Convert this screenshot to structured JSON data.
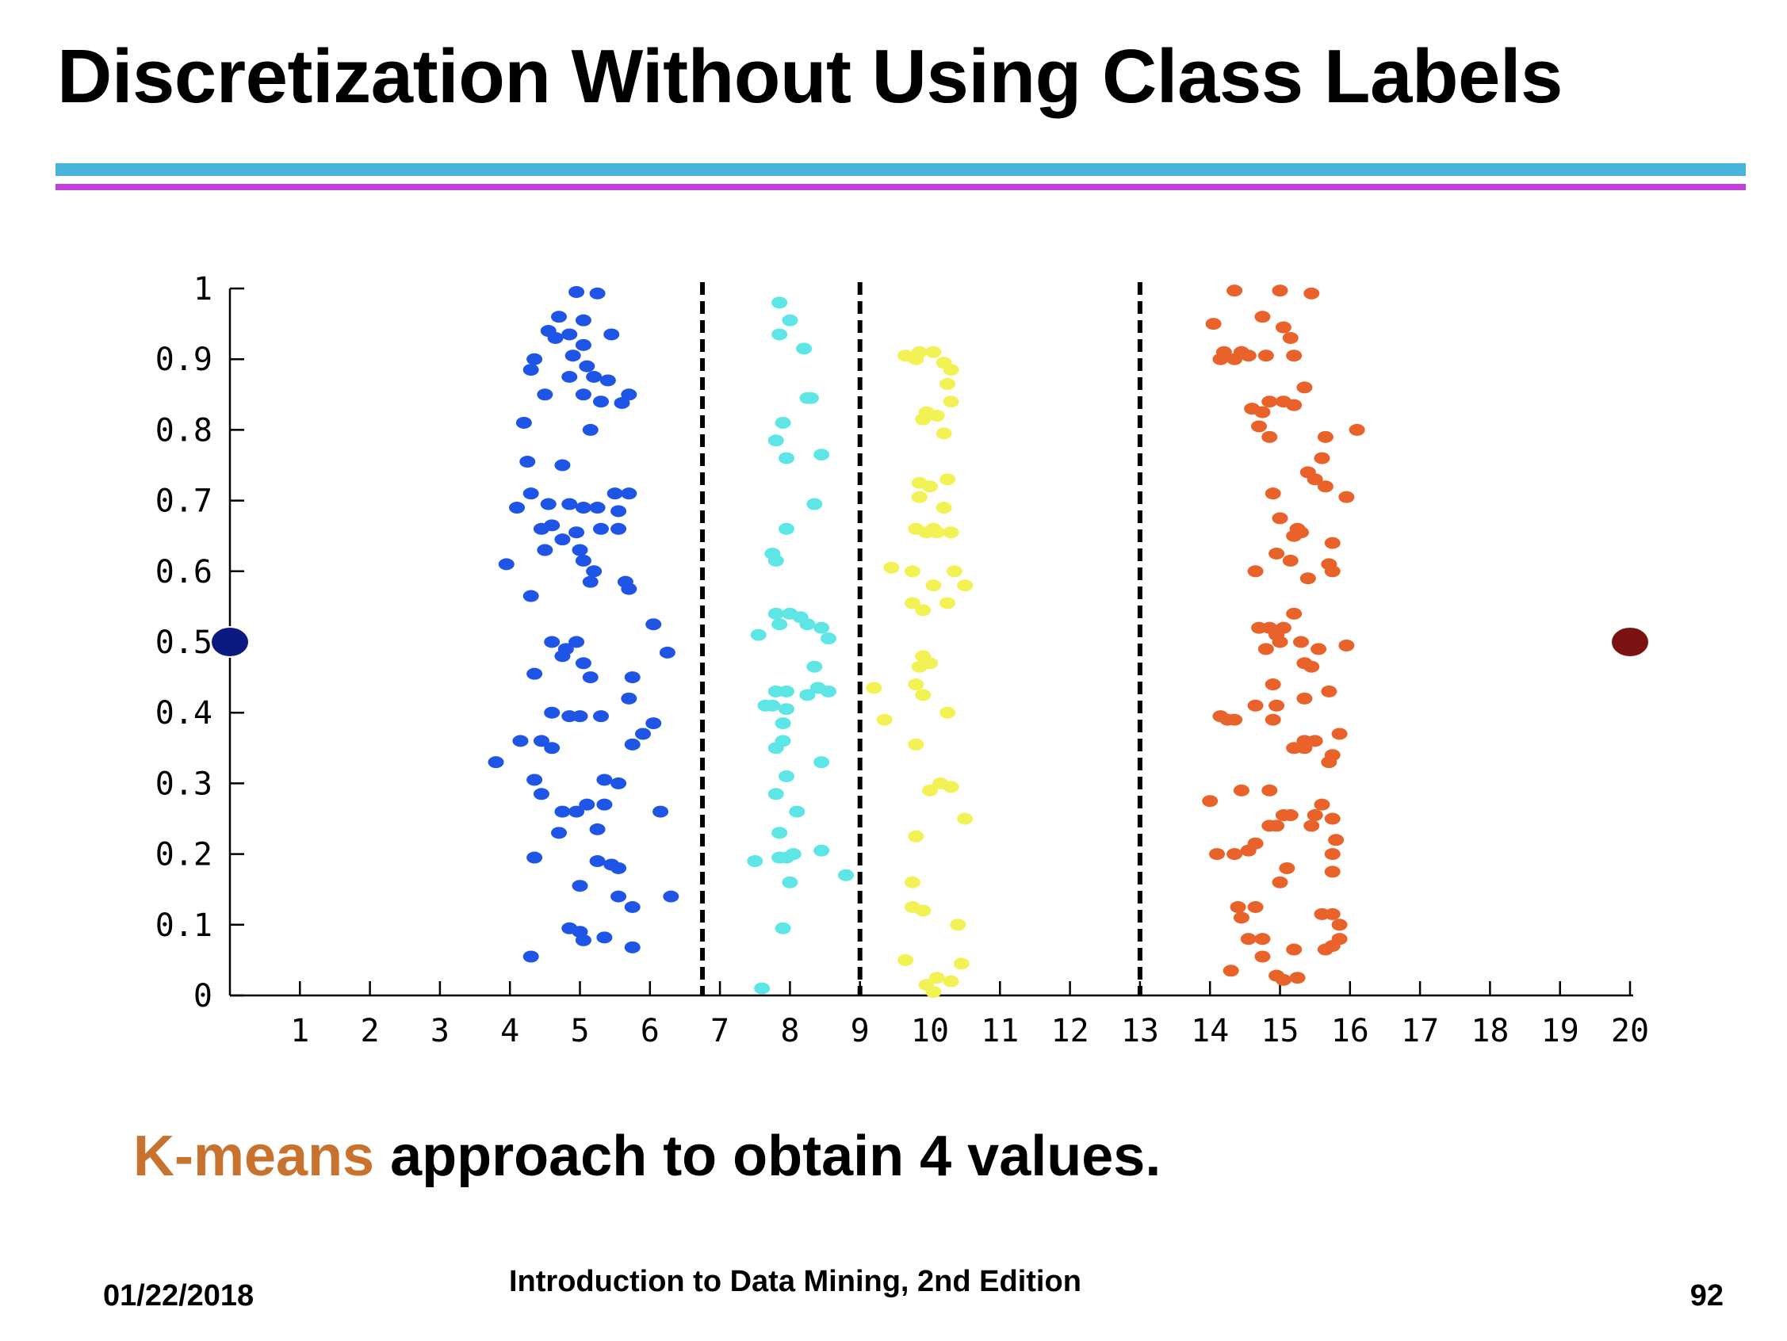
{
  "slide": {
    "title": "Discretization Without Using Class Labels",
    "caption_highlight": "K-means",
    "caption_rest": " approach to obtain 4 values.",
    "footer_date": "01/22/2018",
    "footer_course": "Introduction to Data Mining, 2nd Edition",
    "page_number": "92"
  },
  "colors": {
    "title": "#000000",
    "rule_top": "#48b4dc",
    "rule_bottom": "#c040d8",
    "highlight": "#c8722e"
  },
  "chart_data": {
    "type": "scatter",
    "title": "",
    "xlabel": "",
    "ylabel": "",
    "xlim": [
      0,
      20
    ],
    "ylim": [
      0,
      1
    ],
    "x_ticks": [
      "1",
      "2",
      "3",
      "4",
      "5",
      "6",
      "7",
      "8",
      "9",
      "10",
      "11",
      "12",
      "13",
      "14",
      "15",
      "16",
      "17",
      "18",
      "19",
      "20"
    ],
    "y_ticks": [
      "0",
      "0.1",
      "0.2",
      "0.3",
      "0.4",
      "0.5",
      "0.6",
      "0.7",
      "0.8",
      "0.9",
      "1"
    ],
    "grid": false,
    "cut_points": [
      6.75,
      9.0,
      13.0
    ],
    "endpoints": [
      {
        "x": 0.0,
        "y": 0.5,
        "color": "#0a1a80"
      },
      {
        "x": 20.0,
        "y": 0.5,
        "color": "#7a1212"
      }
    ],
    "series": [
      {
        "color": "#1f55e6",
        "points": [
          [
            4.95,
            0.995
          ],
          [
            5.25,
            0.993
          ],
          [
            4.7,
            0.96
          ],
          [
            5.05,
            0.955
          ],
          [
            4.55,
            0.94
          ],
          [
            4.85,
            0.935
          ],
          [
            4.65,
            0.93
          ],
          [
            5.45,
            0.935
          ],
          [
            5.05,
            0.92
          ],
          [
            4.35,
            0.9
          ],
          [
            4.9,
            0.905
          ],
          [
            5.1,
            0.89
          ],
          [
            4.3,
            0.885
          ],
          [
            5.2,
            0.875
          ],
          [
            4.85,
            0.875
          ],
          [
            5.4,
            0.87
          ],
          [
            4.5,
            0.85
          ],
          [
            5.05,
            0.85
          ],
          [
            5.3,
            0.84
          ],
          [
            5.7,
            0.85
          ],
          [
            5.6,
            0.838
          ],
          [
            5.15,
            0.8
          ],
          [
            4.2,
            0.81
          ],
          [
            4.25,
            0.755
          ],
          [
            4.75,
            0.75
          ],
          [
            5.5,
            0.71
          ],
          [
            5.7,
            0.71
          ],
          [
            4.3,
            0.71
          ],
          [
            4.1,
            0.69
          ],
          [
            4.55,
            0.695
          ],
          [
            4.85,
            0.695
          ],
          [
            5.05,
            0.69
          ],
          [
            4.45,
            0.66
          ],
          [
            4.95,
            0.655
          ],
          [
            4.6,
            0.665
          ],
          [
            5.3,
            0.66
          ],
          [
            5.55,
            0.66
          ],
          [
            4.75,
            0.645
          ],
          [
            5.55,
            0.685
          ],
          [
            5.25,
            0.69
          ],
          [
            5.0,
            0.63
          ],
          [
            5.05,
            0.615
          ],
          [
            4.5,
            0.63
          ],
          [
            3.95,
            0.61
          ],
          [
            5.2,
            0.6
          ],
          [
            5.15,
            0.585
          ],
          [
            5.65,
            0.585
          ],
          [
            5.7,
            0.575
          ],
          [
            4.3,
            0.565
          ],
          [
            6.05,
            0.525
          ],
          [
            4.6,
            0.5
          ],
          [
            4.95,
            0.5
          ],
          [
            4.8,
            0.49
          ],
          [
            6.25,
            0.485
          ],
          [
            5.05,
            0.47
          ],
          [
            4.75,
            0.48
          ],
          [
            5.15,
            0.45
          ],
          [
            4.35,
            0.455
          ],
          [
            5.75,
            0.45
          ],
          [
            4.6,
            0.4
          ],
          [
            4.85,
            0.395
          ],
          [
            5.0,
            0.395
          ],
          [
            5.3,
            0.395
          ],
          [
            5.7,
            0.42
          ],
          [
            6.05,
            0.385
          ],
          [
            5.9,
            0.37
          ],
          [
            4.15,
            0.36
          ],
          [
            4.45,
            0.36
          ],
          [
            4.6,
            0.35
          ],
          [
            5.75,
            0.355
          ],
          [
            3.8,
            0.33
          ],
          [
            4.35,
            0.305
          ],
          [
            5.35,
            0.305
          ],
          [
            5.55,
            0.3
          ],
          [
            4.45,
            0.285
          ],
          [
            5.1,
            0.27
          ],
          [
            5.35,
            0.27
          ],
          [
            4.75,
            0.26
          ],
          [
            4.95,
            0.26
          ],
          [
            6.15,
            0.26
          ],
          [
            4.7,
            0.23
          ],
          [
            5.25,
            0.235
          ],
          [
            4.35,
            0.195
          ],
          [
            5.25,
            0.19
          ],
          [
            5.45,
            0.185
          ],
          [
            5.55,
            0.18
          ],
          [
            5.0,
            0.155
          ],
          [
            5.55,
            0.14
          ],
          [
            6.3,
            0.14
          ],
          [
            5.75,
            0.125
          ],
          [
            4.85,
            0.095
          ],
          [
            5.0,
            0.09
          ],
          [
            5.05,
            0.078
          ],
          [
            5.35,
            0.082
          ],
          [
            5.75,
            0.068
          ],
          [
            4.3,
            0.055
          ]
        ]
      },
      {
        "color": "#5ee6e6",
        "points": [
          [
            7.85,
            0.98
          ],
          [
            8.0,
            0.955
          ],
          [
            7.85,
            0.935
          ],
          [
            8.2,
            0.915
          ],
          [
            8.25,
            0.845
          ],
          [
            8.3,
            0.845
          ],
          [
            7.9,
            0.81
          ],
          [
            7.8,
            0.785
          ],
          [
            7.95,
            0.76
          ],
          [
            8.45,
            0.765
          ],
          [
            8.35,
            0.695
          ],
          [
            7.95,
            0.66
          ],
          [
            7.75,
            0.625
          ],
          [
            7.8,
            0.615
          ],
          [
            7.8,
            0.54
          ],
          [
            8.0,
            0.54
          ],
          [
            8.15,
            0.535
          ],
          [
            8.25,
            0.525
          ],
          [
            8.45,
            0.52
          ],
          [
            8.55,
            0.505
          ],
          [
            7.55,
            0.51
          ],
          [
            7.85,
            0.525
          ],
          [
            8.35,
            0.465
          ],
          [
            8.4,
            0.435
          ],
          [
            8.55,
            0.43
          ],
          [
            7.8,
            0.43
          ],
          [
            7.95,
            0.43
          ],
          [
            7.75,
            0.41
          ],
          [
            8.25,
            0.425
          ],
          [
            7.65,
            0.41
          ],
          [
            7.95,
            0.405
          ],
          [
            7.9,
            0.385
          ],
          [
            7.9,
            0.36
          ],
          [
            7.8,
            0.35
          ],
          [
            7.95,
            0.31
          ],
          [
            8.45,
            0.33
          ],
          [
            7.8,
            0.285
          ],
          [
            8.1,
            0.26
          ],
          [
            7.85,
            0.23
          ],
          [
            7.85,
            0.195
          ],
          [
            7.95,
            0.195
          ],
          [
            8.05,
            0.2
          ],
          [
            8.45,
            0.205
          ],
          [
            7.5,
            0.19
          ],
          [
            8.0,
            0.16
          ],
          [
            8.8,
            0.17
          ],
          [
            7.9,
            0.095
          ],
          [
            7.6,
            0.01
          ]
        ]
      },
      {
        "color": "#f2f255",
        "points": [
          [
            9.65,
            0.905
          ],
          [
            9.85,
            0.91
          ],
          [
            10.05,
            0.91
          ],
          [
            9.8,
            0.9
          ],
          [
            10.2,
            0.895
          ],
          [
            10.3,
            0.885
          ],
          [
            10.25,
            0.865
          ],
          [
            10.3,
            0.84
          ],
          [
            9.95,
            0.825
          ],
          [
            10.1,
            0.82
          ],
          [
            9.9,
            0.815
          ],
          [
            10.2,
            0.795
          ],
          [
            10.25,
            0.73
          ],
          [
            9.85,
            0.725
          ],
          [
            10.0,
            0.72
          ],
          [
            9.85,
            0.705
          ],
          [
            10.2,
            0.69
          ],
          [
            9.8,
            0.66
          ],
          [
            10.05,
            0.66
          ],
          [
            10.3,
            0.655
          ],
          [
            9.95,
            0.655
          ],
          [
            10.1,
            0.655
          ],
          [
            9.45,
            0.605
          ],
          [
            9.75,
            0.6
          ],
          [
            10.35,
            0.6
          ],
          [
            10.5,
            0.58
          ],
          [
            10.05,
            0.58
          ],
          [
            9.75,
            0.555
          ],
          [
            10.25,
            0.555
          ],
          [
            9.9,
            0.545
          ],
          [
            9.9,
            0.48
          ],
          [
            10.0,
            0.47
          ],
          [
            9.85,
            0.465
          ],
          [
            9.8,
            0.44
          ],
          [
            9.9,
            0.425
          ],
          [
            9.2,
            0.435
          ],
          [
            10.25,
            0.4
          ],
          [
            9.35,
            0.39
          ],
          [
            9.8,
            0.355
          ],
          [
            10.15,
            0.3
          ],
          [
            10.0,
            0.29
          ],
          [
            10.3,
            0.295
          ],
          [
            10.5,
            0.25
          ],
          [
            9.8,
            0.225
          ],
          [
            9.75,
            0.16
          ],
          [
            9.75,
            0.125
          ],
          [
            9.9,
            0.12
          ],
          [
            10.4,
            0.1
          ],
          [
            9.65,
            0.05
          ],
          [
            10.45,
            0.045
          ],
          [
            10.1,
            0.025
          ],
          [
            10.3,
            0.02
          ],
          [
            9.95,
            0.015
          ],
          [
            10.05,
            0.005
          ]
        ]
      },
      {
        "color": "#e8622a",
        "points": [
          [
            14.35,
            0.997
          ],
          [
            15.0,
            0.997
          ],
          [
            15.45,
            0.993
          ],
          [
            14.75,
            0.96
          ],
          [
            15.05,
            0.945
          ],
          [
            14.05,
            0.95
          ],
          [
            15.15,
            0.93
          ],
          [
            14.45,
            0.91
          ],
          [
            14.2,
            0.91
          ],
          [
            14.15,
            0.9
          ],
          [
            14.35,
            0.9
          ],
          [
            14.55,
            0.905
          ],
          [
            14.8,
            0.905
          ],
          [
            15.2,
            0.905
          ],
          [
            15.35,
            0.86
          ],
          [
            14.85,
            0.84
          ],
          [
            15.05,
            0.84
          ],
          [
            14.6,
            0.83
          ],
          [
            15.2,
            0.835
          ],
          [
            14.75,
            0.825
          ],
          [
            14.7,
            0.805
          ],
          [
            14.85,
            0.79
          ],
          [
            15.65,
            0.79
          ],
          [
            16.1,
            0.8
          ],
          [
            15.6,
            0.76
          ],
          [
            15.4,
            0.74
          ],
          [
            15.5,
            0.73
          ],
          [
            15.65,
            0.72
          ],
          [
            15.95,
            0.705
          ],
          [
            14.9,
            0.71
          ],
          [
            15.0,
            0.675
          ],
          [
            15.25,
            0.66
          ],
          [
            15.3,
            0.655
          ],
          [
            15.2,
            0.65
          ],
          [
            15.75,
            0.64
          ],
          [
            14.95,
            0.625
          ],
          [
            15.15,
            0.615
          ],
          [
            15.7,
            0.61
          ],
          [
            15.75,
            0.6
          ],
          [
            14.65,
            0.6
          ],
          [
            15.4,
            0.59
          ],
          [
            14.7,
            0.52
          ],
          [
            15.05,
            0.52
          ],
          [
            14.95,
            0.51
          ],
          [
            14.85,
            0.52
          ],
          [
            15.2,
            0.54
          ],
          [
            15.3,
            0.5
          ],
          [
            15.0,
            0.5
          ],
          [
            15.95,
            0.495
          ],
          [
            14.8,
            0.49
          ],
          [
            15.55,
            0.49
          ],
          [
            15.35,
            0.47
          ],
          [
            15.45,
            0.465
          ],
          [
            14.9,
            0.44
          ],
          [
            15.7,
            0.43
          ],
          [
            14.95,
            0.41
          ],
          [
            15.35,
            0.42
          ],
          [
            14.65,
            0.41
          ],
          [
            14.15,
            0.395
          ],
          [
            14.25,
            0.39
          ],
          [
            14.35,
            0.39
          ],
          [
            14.9,
            0.39
          ],
          [
            15.85,
            0.37
          ],
          [
            15.5,
            0.36
          ],
          [
            15.35,
            0.36
          ],
          [
            15.35,
            0.35
          ],
          [
            15.2,
            0.35
          ],
          [
            15.75,
            0.34
          ],
          [
            15.7,
            0.33
          ],
          [
            14.0,
            0.275
          ],
          [
            14.45,
            0.29
          ],
          [
            14.85,
            0.29
          ],
          [
            15.6,
            0.27
          ],
          [
            15.75,
            0.25
          ],
          [
            15.05,
            0.255
          ],
          [
            15.15,
            0.255
          ],
          [
            14.85,
            0.24
          ],
          [
            15.5,
            0.255
          ],
          [
            15.45,
            0.24
          ],
          [
            14.95,
            0.24
          ],
          [
            15.8,
            0.22
          ],
          [
            14.65,
            0.215
          ],
          [
            14.1,
            0.2
          ],
          [
            14.35,
            0.2
          ],
          [
            14.55,
            0.205
          ],
          [
            15.75,
            0.2
          ],
          [
            15.1,
            0.18
          ],
          [
            15.0,
            0.16
          ],
          [
            15.75,
            0.175
          ],
          [
            14.4,
            0.125
          ],
          [
            14.65,
            0.125
          ],
          [
            14.45,
            0.11
          ],
          [
            15.6,
            0.115
          ],
          [
            15.75,
            0.115
          ],
          [
            15.85,
            0.1
          ],
          [
            15.85,
            0.08
          ],
          [
            15.75,
            0.07
          ],
          [
            15.65,
            0.065
          ],
          [
            14.55,
            0.08
          ],
          [
            14.75,
            0.08
          ],
          [
            14.75,
            0.055
          ],
          [
            15.2,
            0.065
          ],
          [
            14.3,
            0.035
          ],
          [
            14.95,
            0.028
          ],
          [
            15.05,
            0.022
          ],
          [
            15.25,
            0.025
          ]
        ]
      }
    ]
  }
}
